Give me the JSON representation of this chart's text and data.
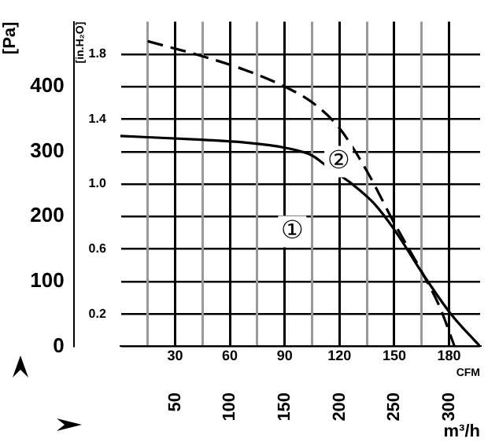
{
  "chart_data": {
    "type": "line",
    "xlabel": "CFM",
    "x2label": "m³/h",
    "ylabel": "[Pa]",
    "y2label": "[in.H₂O]",
    "xlim": [
      0,
      197
    ],
    "xticks": [
      {
        "value": 15,
        "label": null
      },
      30,
      {
        "value": 45,
        "label": null
      },
      60,
      {
        "value": 75,
        "label": null
      },
      90,
      {
        "value": 105,
        "label": null
      },
      120,
      {
        "value": 135,
        "label": null
      },
      150,
      {
        "value": 165,
        "label": null
      },
      180
    ],
    "x2lim": [
      0,
      328
    ],
    "x2ticks": [
      50,
      100,
      150,
      200,
      250,
      300
    ],
    "ylim": [
      0,
      500
    ],
    "yticks": [
      0,
      {
        "value": 50,
        "label": null
      },
      100,
      {
        "value": 150,
        "label": null
      },
      200,
      {
        "value": 250,
        "label": null
      },
      300,
      {
        "value": 350,
        "label": null
      },
      400,
      {
        "value": 450,
        "label": null
      }
    ],
    "y2lim": [
      0,
      2.0
    ],
    "y2ticks": [
      0.2,
      0.6,
      {
        "value": 1,
        "label": "1.0"
      },
      1.4,
      1.8
    ],
    "grid": true,
    "legend": false,
    "marker": "none",
    "series": [
      {
        "name": "①",
        "color": "#000000",
        "line_style": "solid",
        "x": [
          0,
          46,
          68,
          90,
          105,
          112,
          120,
          127,
          139,
          150,
          166,
          181,
          197
        ],
        "values": [
          324,
          318,
          314,
          306,
          294,
          280,
          264,
          250,
          220,
          180,
          110,
          50,
          0
        ]
      },
      {
        "name": "②",
        "color": "#000000",
        "line_style": "dashed",
        "x": [
          15,
          46,
          68,
          90,
          105,
          120,
          135,
          150,
          166,
          175,
          183
        ],
        "values": [
          470,
          446,
          426,
          400,
          376,
          336,
          270,
          190,
          110,
          60,
          0
        ]
      }
    ]
  }
}
